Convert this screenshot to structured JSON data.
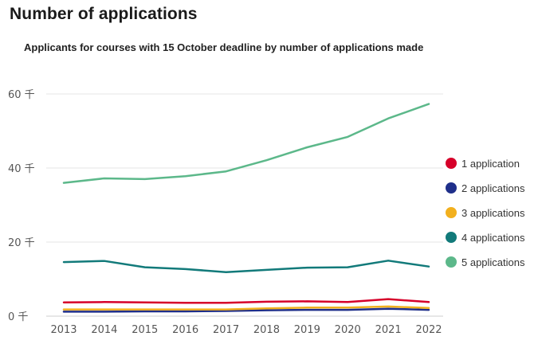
{
  "page": {
    "title": "Number of applications"
  },
  "chart_data": {
    "type": "line",
    "title": "Applicants for courses with 15 October deadline  by number of applications made",
    "xlabel": "",
    "ylabel": "",
    "x": [
      2013,
      2014,
      2015,
      2016,
      2017,
      2018,
      2019,
      2020,
      2021,
      2022
    ],
    "ylim": [
      0,
      60
    ],
    "yticks": [
      0,
      20,
      40,
      60
    ],
    "ytick_labels": [
      "0 千",
      "20 千",
      "40 千",
      "60 千"
    ],
    "grid": true,
    "legend_position": "right",
    "series": [
      {
        "name": "1 application",
        "color": "#d6002a",
        "values": [
          3.7,
          3.8,
          3.7,
          3.6,
          3.6,
          3.9,
          4.0,
          3.8,
          4.6,
          3.8
        ]
      },
      {
        "name": "2 applications",
        "color": "#1f2f8a",
        "values": [
          1.2,
          1.2,
          1.3,
          1.3,
          1.4,
          1.6,
          1.7,
          1.7,
          2.0,
          1.7
        ]
      },
      {
        "name": "3 applications",
        "color": "#f2b01e",
        "values": [
          1.8,
          1.8,
          1.8,
          1.8,
          1.8,
          2.1,
          2.3,
          2.3,
          2.6,
          2.2
        ]
      },
      {
        "name": "4 applications",
        "color": "#127a7a",
        "values": [
          14.6,
          14.9,
          13.2,
          12.7,
          11.9,
          12.5,
          13.1,
          13.2,
          15.0,
          13.4
        ]
      },
      {
        "name": "5 applications",
        "color": "#5cb88a",
        "values": [
          36.0,
          37.2,
          37.0,
          37.8,
          39.1,
          42.1,
          45.6,
          48.4,
          53.4,
          57.3
        ]
      }
    ]
  }
}
